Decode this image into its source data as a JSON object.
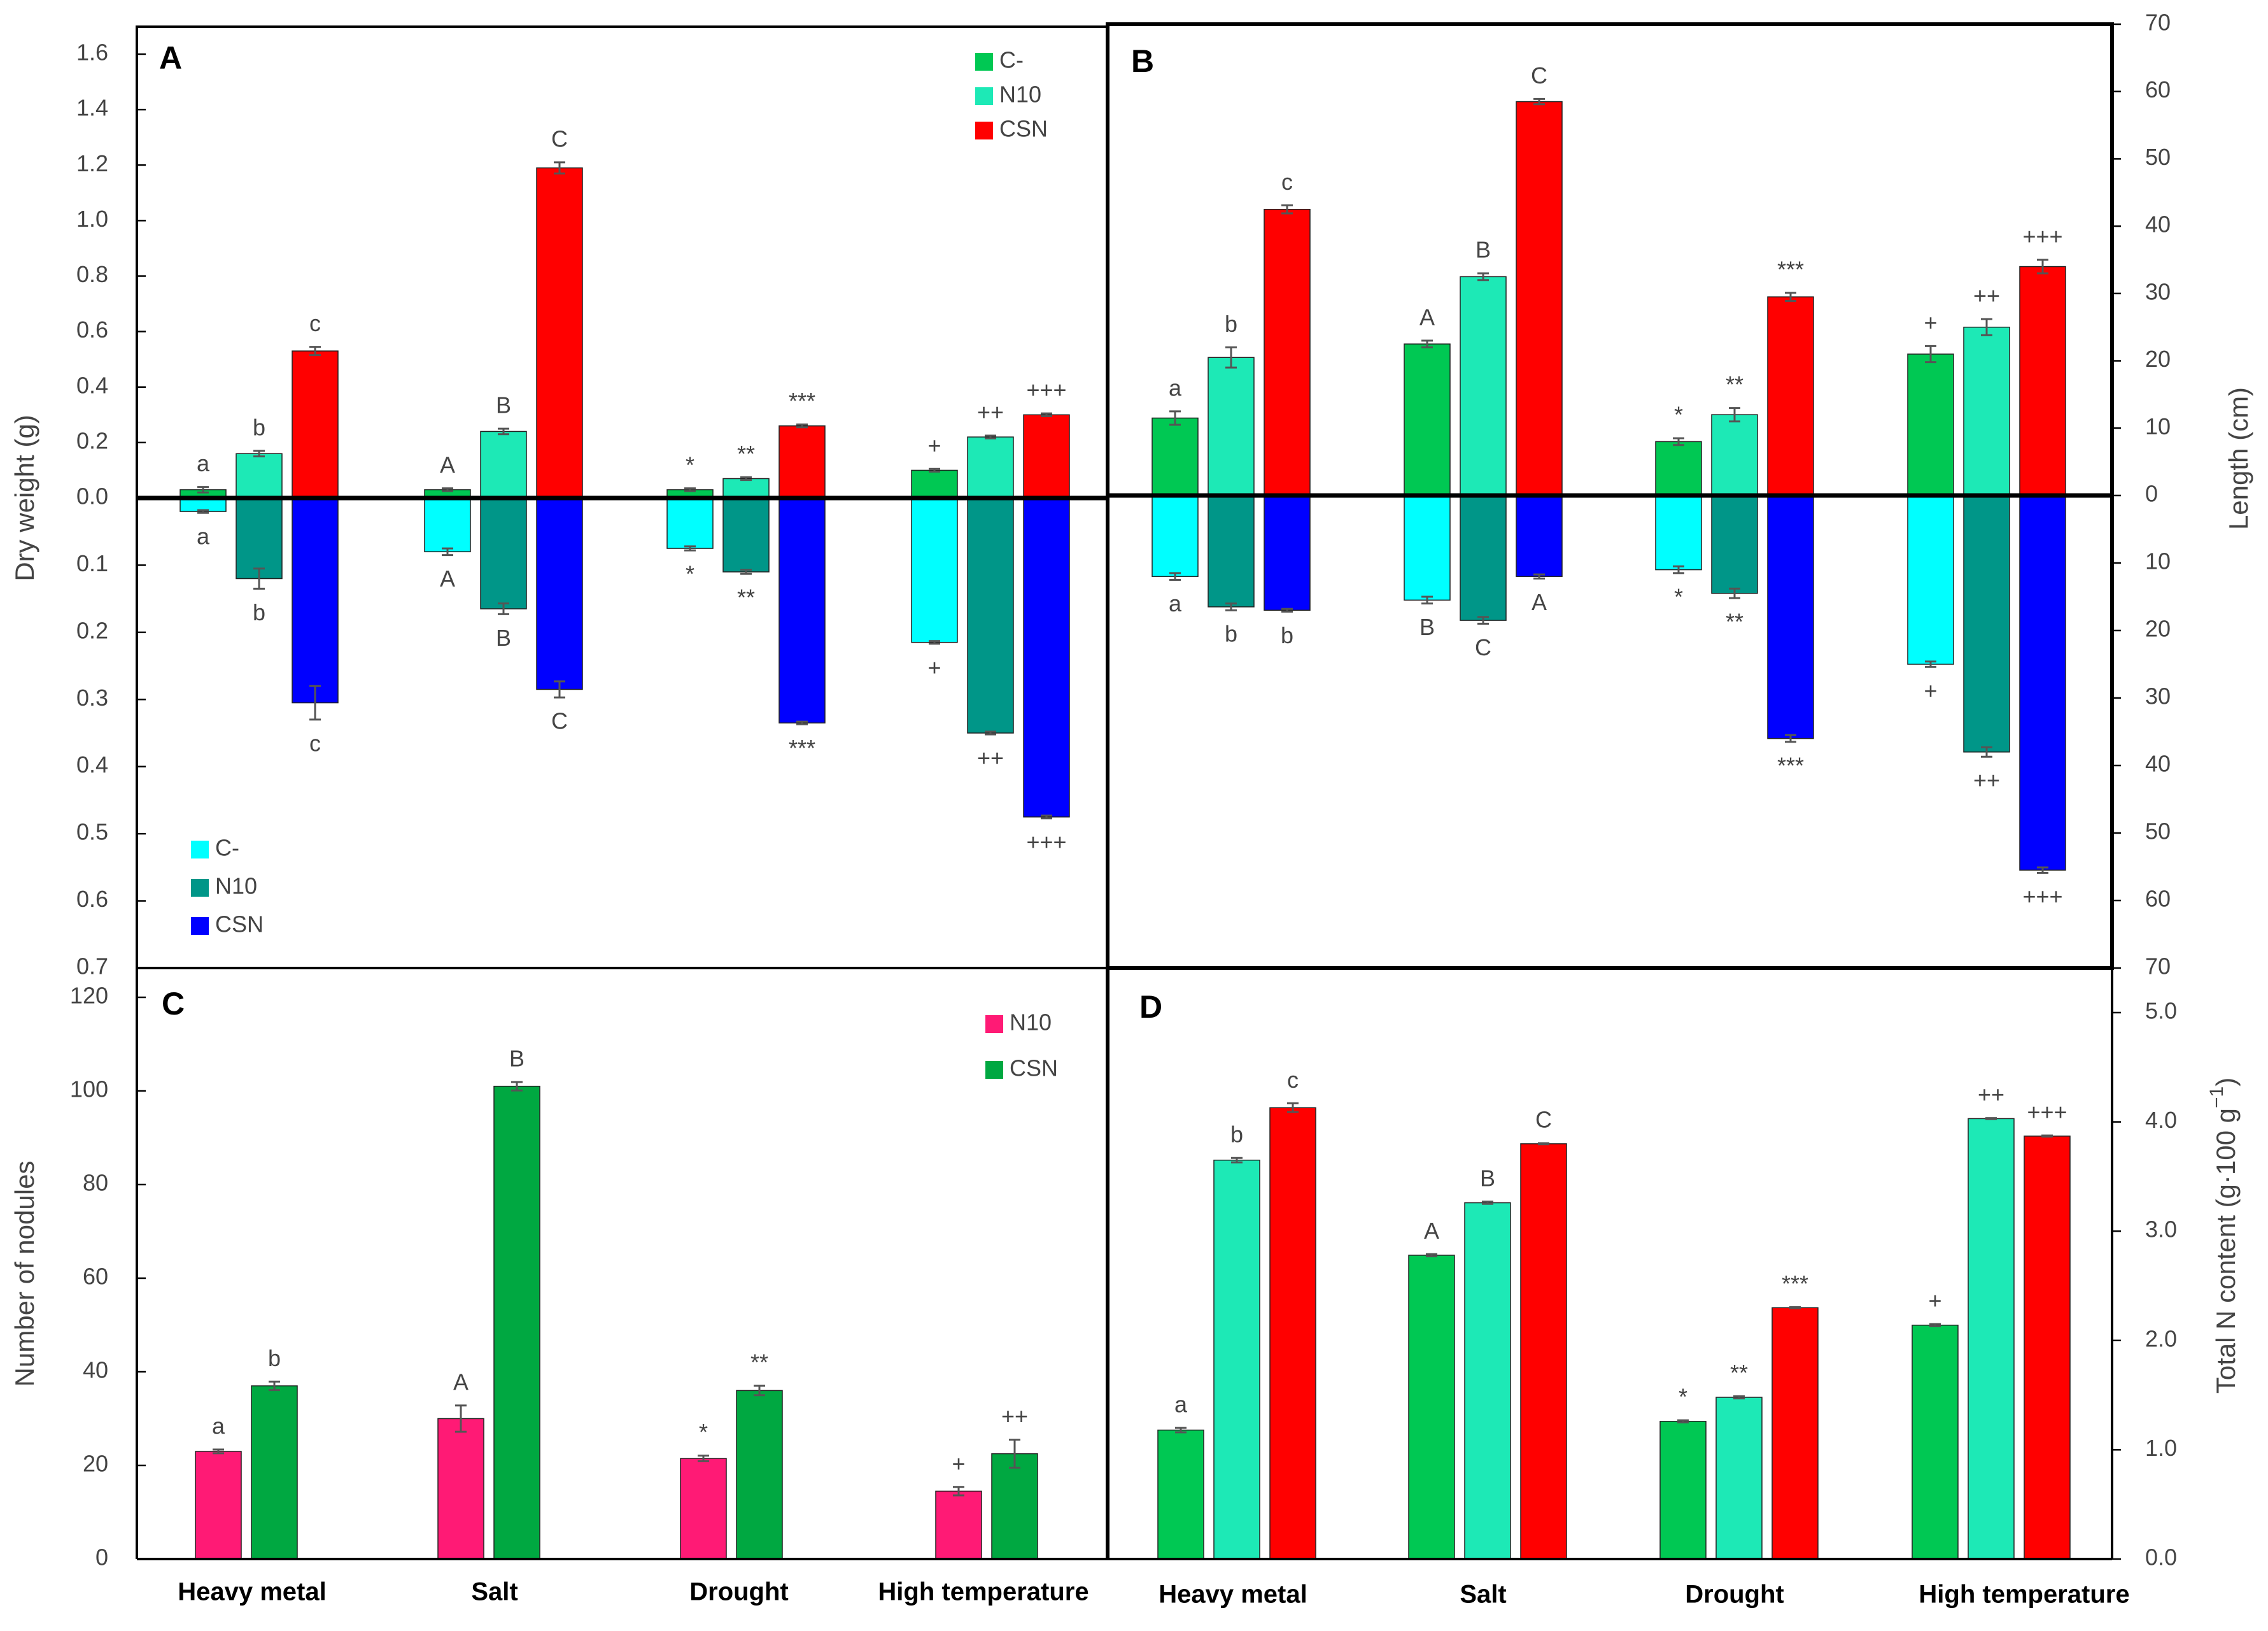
{
  "chart_data": [
    {
      "panel": "A",
      "type": "bar",
      "categories": [
        "Heavy metal",
        "Salt",
        "Drought",
        "High   temperature"
      ],
      "ylabel": "Dry  weight (g)",
      "yticks_top": [
        "0.0",
        "0.2",
        "0.4",
        "0.6",
        "0.8",
        "1.0",
        "1.2",
        "1.4",
        "1.6"
      ],
      "yticks_bottom": [
        "0.1",
        "0.2",
        "0.3",
        "0.4",
        "0.5",
        "0.6",
        "0.7"
      ],
      "ylim_top": [
        0,
        1.6
      ],
      "ylim_bottom": [
        0,
        0.7
      ],
      "top_series": [
        {
          "name": "C-",
          "color": "#00c853",
          "values": [
            0.03,
            0.03,
            0.03,
            0.1
          ],
          "errors": [
            0.01,
            0.005,
            0.005,
            0.005
          ],
          "labels": [
            "a",
            "A",
            "*",
            "+"
          ]
        },
        {
          "name": "N10",
          "color": "#1de9b6",
          "values": [
            0.16,
            0.24,
            0.07,
            0.22
          ],
          "errors": [
            0.01,
            0.01,
            0.005,
            0.005
          ],
          "labels": [
            "b",
            "B",
            "**",
            "++"
          ]
        },
        {
          "name": "CSN",
          "color": "#ff0000",
          "values": [
            0.53,
            1.19,
            0.26,
            0.3
          ],
          "errors": [
            0.015,
            0.02,
            0.005,
            0.005
          ],
          "labels": [
            "c",
            "C",
            "***",
            "+++"
          ]
        }
      ],
      "bottom_series": [
        {
          "name": "C-",
          "color": "#00ffff",
          "values": [
            0.02,
            0.08,
            0.075,
            0.215
          ],
          "errors": [
            0.002,
            0.005,
            0.003,
            0.002
          ],
          "labels": [
            "a",
            "A",
            "*",
            "+"
          ]
        },
        {
          "name": "N10",
          "color": "#009688",
          "values": [
            0.12,
            0.165,
            0.11,
            0.35
          ],
          "errors": [
            0.015,
            0.008,
            0.003,
            0.002
          ],
          "labels": [
            "b",
            "B",
            "**",
            "++"
          ]
        },
        {
          "name": "CSN",
          "color": "#0000ff",
          "values": [
            0.305,
            0.285,
            0.335,
            0.475
          ],
          "errors": [
            0.025,
            0.012,
            0.002,
            0.002
          ],
          "labels": [
            "c",
            "C",
            "***",
            "+++"
          ]
        }
      ]
    },
    {
      "panel": "B",
      "type": "bar",
      "categories": [
        "Heavy metal",
        "Salt",
        "Drought",
        "High   temperature"
      ],
      "ylabel": "Length (cm)",
      "yticks_top": [
        "0",
        "10",
        "20",
        "30",
        "40",
        "50",
        "60",
        "70"
      ],
      "yticks_bottom": [
        "10",
        "20",
        "30",
        "40",
        "50",
        "60",
        "70"
      ],
      "ylim_top": [
        0,
        70
      ],
      "ylim_bottom": [
        0,
        70
      ],
      "top_series": [
        {
          "name": "C-",
          "color": "#00c853",
          "values": [
            11.5,
            22.5,
            8,
            21
          ],
          "errors": [
            1,
            0.5,
            0.5,
            1.2
          ],
          "labels": [
            "a",
            "A",
            "*",
            "+"
          ]
        },
        {
          "name": "N10",
          "color": "#1de9b6",
          "values": [
            20.5,
            32.5,
            12,
            25
          ],
          "errors": [
            1.5,
            0.5,
            1,
            1.2
          ],
          "labels": [
            "b",
            "B",
            "**",
            "++"
          ]
        },
        {
          "name": "CSN",
          "color": "#ff0000",
          "values": [
            42.5,
            58.5,
            29.5,
            34
          ],
          "errors": [
            0.6,
            0.4,
            0.6,
            1
          ],
          "labels": [
            "c",
            "C",
            "***",
            "+++"
          ]
        }
      ],
      "bottom_series": [
        {
          "name": "C-",
          "color": "#00ffff",
          "values": [
            12,
            15.5,
            11,
            25
          ],
          "errors": [
            0.5,
            0.5,
            0.5,
            0.4
          ],
          "labels": [
            "a",
            "B",
            "*",
            "+"
          ]
        },
        {
          "name": "N10",
          "color": "#009688",
          "values": [
            16.5,
            18.5,
            14.5,
            38
          ],
          "errors": [
            0.5,
            0.5,
            0.7,
            0.7
          ],
          "labels": [
            "b",
            "C",
            "**",
            "++"
          ]
        },
        {
          "name": "CSN",
          "color": "#0000ff",
          "values": [
            17,
            12,
            36,
            55.5
          ],
          "errors": [
            0.2,
            0.3,
            0.5,
            0.4
          ],
          "labels": [
            "b",
            "A",
            "***",
            "+++"
          ]
        }
      ]
    },
    {
      "panel": "C",
      "type": "bar",
      "categories": [
        "Heavy metal",
        "Salt",
        "Drought",
        "High   temperature"
      ],
      "ylabel": "Number of nodules",
      "yticks": [
        "0",
        "20",
        "40",
        "60",
        "80",
        "100",
        "120"
      ],
      "ylim": [
        0,
        120
      ],
      "legend": {
        "position": "top-right"
      },
      "series": [
        {
          "name": "N10",
          "color": "#ff1a75",
          "values": [
            23,
            30,
            21.5,
            14.5
          ],
          "errors": [
            0.4,
            2.8,
            0.6,
            0.9
          ],
          "labels": [
            "a",
            "A",
            "*",
            "+"
          ]
        },
        {
          "name": "CSN",
          "color": "#00a841",
          "values": [
            37,
            101,
            36,
            22.5
          ],
          "errors": [
            0.9,
            0.9,
            1,
            3
          ],
          "labels": [
            "b",
            "B",
            "**",
            "++"
          ]
        }
      ]
    },
    {
      "panel": "D",
      "type": "bar",
      "categories": [
        "Heavy metal",
        "Salt",
        "Drought",
        "High   temperature"
      ],
      "ylabel_main": "Total N content (g·100 g",
      "ylabel_sup": "−1",
      "ylabel_tail": ")",
      "yticks": [
        "0.0",
        "1.0",
        "2.0",
        "3.0",
        "4.0",
        "5.0"
      ],
      "ylim": [
        0,
        5
      ],
      "series": [
        {
          "name": "C-",
          "color": "#00c853",
          "values": [
            1.18,
            2.78,
            1.26,
            2.14
          ],
          "errors": [
            0.02,
            0.01,
            0.01,
            0.01
          ],
          "labels": [
            "a",
            "A",
            "*",
            "+"
          ]
        },
        {
          "name": "N10",
          "color": "#1de9b6",
          "values": [
            3.65,
            3.26,
            1.48,
            4.03
          ],
          "errors": [
            0.02,
            0.01,
            0.01,
            0.005
          ],
          "labels": [
            "b",
            "B",
            "**",
            "++"
          ]
        },
        {
          "name": "CSN",
          "color": "#ff0000",
          "values": [
            4.13,
            3.8,
            2.3,
            3.87
          ],
          "errors": [
            0.04,
            0.005,
            0.005,
            0.005
          ],
          "labels": [
            "c",
            "C",
            "***",
            "+++"
          ]
        }
      ]
    }
  ]
}
